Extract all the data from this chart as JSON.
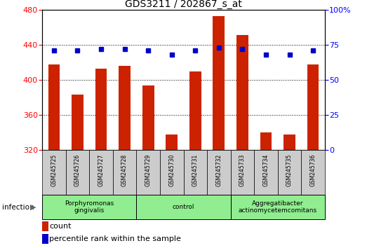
{
  "title": "GDS3211 / 202867_s_at",
  "samples": [
    "GSM245725",
    "GSM245726",
    "GSM245727",
    "GSM245728",
    "GSM245729",
    "GSM245730",
    "GSM245731",
    "GSM245732",
    "GSM245733",
    "GSM245734",
    "GSM245735",
    "GSM245736"
  ],
  "counts": [
    418,
    383,
    413,
    416,
    394,
    338,
    410,
    473,
    451,
    340,
    338,
    418
  ],
  "percentile_ranks": [
    71,
    71,
    72,
    72,
    71,
    68,
    71,
    73,
    72,
    68,
    68,
    71
  ],
  "groups": [
    {
      "label": "Porphyromonas\ngingivalis",
      "start": 0,
      "end": 3
    },
    {
      "label": "control",
      "start": 4,
      "end": 7
    },
    {
      "label": "Aggregatibacter\nactinomycetemcomitans",
      "start": 8,
      "end": 11
    }
  ],
  "ylim_left": [
    320,
    480
  ],
  "ylim_right": [
    0,
    100
  ],
  "yticks_left": [
    320,
    360,
    400,
    440,
    480
  ],
  "yticks_right": [
    0,
    25,
    50,
    75,
    100
  ],
  "bar_color": "#CC2200",
  "dot_color": "#0000CC",
  "bar_width": 0.5,
  "bar_bottom": 320,
  "group_color": "#90EE90",
  "sample_bg_color": "#CCCCCC",
  "infection_label": "infection",
  "legend_count_label": "count",
  "legend_pct_label": "percentile rank within the sample"
}
